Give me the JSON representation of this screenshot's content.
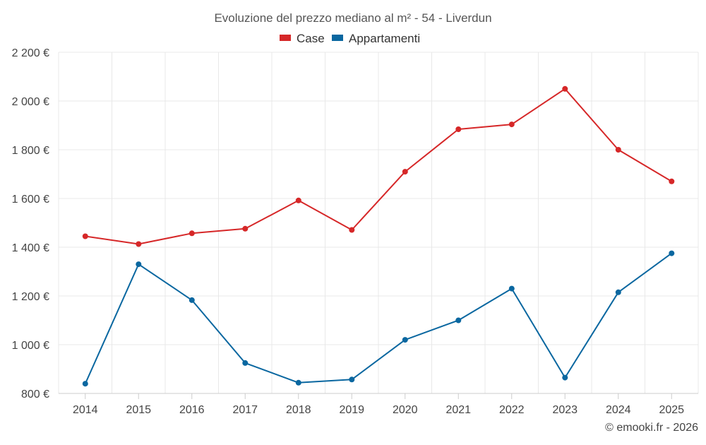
{
  "chart_data": {
    "type": "line",
    "title": "Evoluzione del prezzo mediano al m² - 54 - Liverdun",
    "categories": [
      "2014",
      "2015",
      "2016",
      "2017",
      "2018",
      "2019",
      "2020",
      "2021",
      "2022",
      "2023",
      "2024",
      "2025"
    ],
    "series": [
      {
        "name": "Case",
        "color": "#d62728",
        "values": [
          1445,
          1413,
          1457,
          1476,
          1592,
          1471,
          1710,
          1884,
          1904,
          2050,
          1800,
          1670
        ]
      },
      {
        "name": "Appartamenti",
        "color": "#0a67a0",
        "values": [
          840,
          1330,
          1183,
          925,
          844,
          857,
          1020,
          1100,
          1230,
          865,
          1215,
          1375
        ]
      }
    ],
    "yticks": [
      800,
      1000,
      1200,
      1400,
      1600,
      1800,
      2000,
      2200
    ],
    "ytick_labels": [
      "800 €",
      "1 000 €",
      "1 200 €",
      "1 400 €",
      "1 600 €",
      "1 800 €",
      "2 000 €",
      "2 200 €"
    ],
    "ylim": [
      800,
      2200
    ],
    "xlabel": "",
    "ylabel": "",
    "legend_position": "top-center",
    "grid": true
  },
  "footer": {
    "credit": "© emooki.fr - 2026"
  }
}
